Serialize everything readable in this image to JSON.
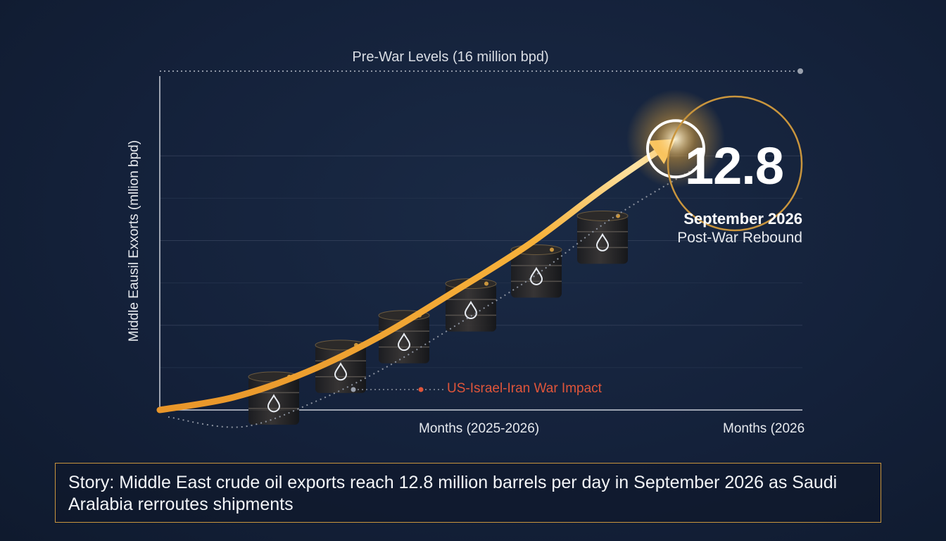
{
  "chart_data": {
    "type": "line",
    "title": "",
    "ylabel": "Middle Eausil Exxorts (mllion bpd)",
    "xlabels": [
      "Months (2025-2026)",
      "Months (2026"
    ],
    "ylim": [
      0,
      16
    ],
    "grid": true,
    "series": [
      {
        "x": [
          0,
          1,
          2,
          3,
          4,
          5,
          6,
          7
        ],
        "y": [
          0.0,
          0.6,
          1.8,
          3.5,
          5.6,
          7.8,
          10.4,
          12.8
        ]
      }
    ],
    "reference_line": {
      "label": "Pre-War Levels (16 million bpd)",
      "value": 16
    },
    "annotations": {
      "value": "12.8",
      "date": "September 2026",
      "subtitle": "Post-War Rebound",
      "event": "US-Israel-Iran War Impact"
    },
    "barrels": [
      1.3,
      2.8,
      4.2,
      5.7,
      7.3,
      8.9
    ]
  },
  "colors": {
    "accent": "#f5a623",
    "event": "#e0553a",
    "callout_ring": "#c9953d",
    "background": "#14213a"
  },
  "story": "Story: Middle East crude oil exports reach 12.8 million barrels per day in September 2026 as Saudi Aralabia rerroutes shipments"
}
